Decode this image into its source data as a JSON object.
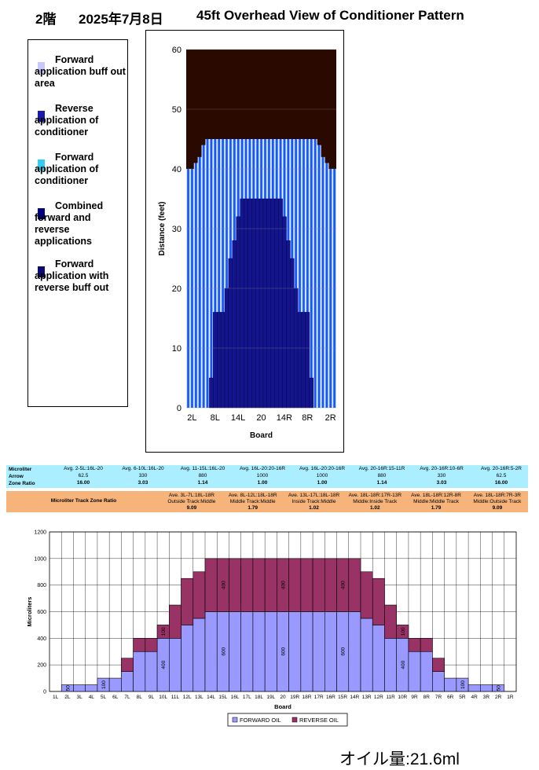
{
  "header": {
    "floor": "2階",
    "date": "2025年7月8日",
    "title": "45ft Overhead View of Conditioner Pattern"
  },
  "legend": [
    {
      "name": "Forward application buff out area",
      "color": "#c8c8ff"
    },
    {
      "name": "Reverse application of conditioner",
      "color": "#1a1aa8"
    },
    {
      "name": "Forward application of conditioner",
      "color": "#33ccee"
    },
    {
      "name": "Combined forward and reverse applications",
      "color": "#000080"
    },
    {
      "name": "Forward application with reverse buff out",
      "color": "#0a0a70"
    }
  ],
  "chart_data": [
    {
      "type": "overhead",
      "y_label": "Distance (feet)",
      "x_label": "Board",
      "categories": [
        null,
        "2L",
        null,
        null,
        null,
        null,
        null,
        "8L",
        null,
        null,
        null,
        null,
        null,
        "14L",
        null,
        null,
        null,
        null,
        null,
        "20",
        null,
        null,
        null,
        null,
        null,
        "14R",
        null,
        null,
        null,
        null,
        null,
        "8R",
        null,
        null,
        null,
        null,
        null,
        "2R",
        null
      ],
      "series": [
        {
          "color": "#2050ff",
          "values": [
            40,
            40,
            41,
            42,
            44,
            45,
            45,
            45,
            45,
            45,
            45,
            45,
            45,
            45,
            45,
            45,
            45,
            45,
            45,
            45,
            45,
            45,
            45,
            45,
            45,
            45,
            45,
            45,
            45,
            45,
            45,
            45,
            45,
            45,
            44,
            42,
            41,
            40,
            40
          ]
        },
        {
          "color": "#14148c",
          "values": [
            0,
            0,
            0,
            0,
            0,
            0,
            5,
            16,
            16,
            16,
            20,
            25,
            28,
            32,
            35,
            35,
            35,
            35,
            35,
            35,
            35,
            35,
            35,
            35,
            35,
            32,
            28,
            25,
            20,
            16,
            16,
            16,
            5,
            0,
            0,
            0,
            0,
            0,
            0
          ]
        }
      ],
      "ylim": [
        0,
        60
      ],
      "yticks": [
        0,
        10,
        20,
        30,
        40,
        50,
        60
      ],
      "grid": true
    },
    {
      "type": "bar",
      "stacked": true,
      "y_label": "Microliters",
      "x_label": "Board",
      "categories": [
        "1L",
        "2L",
        "3L",
        "4L",
        "5L",
        "6L",
        "7L",
        "8L",
        "9L",
        "10L",
        "11L",
        "12L",
        "13L",
        "14L",
        "15L",
        "16L",
        "17L",
        "18L",
        "19L",
        "20",
        "19R",
        "18R",
        "17R",
        "16R",
        "15R",
        "14R",
        "13R",
        "12R",
        "11R",
        "10R",
        "9R",
        "8R",
        "7R",
        "6R",
        "5R",
        "4R",
        "3R",
        "2R",
        "1R"
      ],
      "series": [
        {
          "name": "FORWARD OIL",
          "color": "#9999ff",
          "values": [
            0,
            50,
            50,
            50,
            100,
            100,
            150,
            300,
            300,
            400,
            400,
            500,
            550,
            600,
            600,
            600,
            600,
            600,
            600,
            600,
            600,
            600,
            600,
            600,
            600,
            600,
            550,
            500,
            400,
            400,
            300,
            300,
            150,
            100,
            100,
            50,
            50,
            50,
            0
          ],
          "value_labels": [
            null,
            "50",
            null,
            null,
            "100",
            null,
            null,
            null,
            null,
            "400",
            null,
            null,
            null,
            null,
            "600",
            null,
            null,
            null,
            null,
            "600",
            null,
            null,
            null,
            null,
            "600",
            null,
            null,
            null,
            null,
            "400",
            null,
            null,
            null,
            null,
            "100",
            null,
            null,
            "50",
            null
          ]
        },
        {
          "name": "REVERSE OIL",
          "color": "#993366",
          "values": [
            0,
            0,
            0,
            0,
            0,
            0,
            100,
            100,
            100,
            100,
            250,
            350,
            350,
            400,
            400,
            400,
            400,
            400,
            400,
            400,
            400,
            400,
            400,
            400,
            400,
            400,
            350,
            350,
            250,
            100,
            100,
            100,
            100,
            0,
            0,
            0,
            0,
            0,
            0
          ],
          "value_labels": [
            null,
            null,
            null,
            null,
            null,
            null,
            null,
            null,
            null,
            "100",
            null,
            null,
            null,
            null,
            "400",
            null,
            null,
            null,
            null,
            "400",
            null,
            null,
            null,
            null,
            "400",
            null,
            null,
            null,
            null,
            "100",
            null,
            null,
            null,
            null,
            null,
            null,
            null,
            null,
            null
          ]
        }
      ],
      "ylim": [
        0,
        1200
      ],
      "yticks": [
        0,
        200,
        400,
        600,
        800,
        1000,
        1200
      ],
      "grid": true
    }
  ],
  "table": {
    "row_labels": [
      "Microliter",
      "Arrow",
      "Zone Ratio"
    ],
    "arrow_columns": [
      [
        "Avg. 2-5L:16L-20",
        "62.5",
        "16.00"
      ],
      [
        "Avg. 6-10L:16L-20",
        "330",
        "3.03"
      ],
      [
        "Avg. 11-15L:16L-20",
        "880",
        "1.14"
      ],
      [
        "Avg. 16L-20:20-16R",
        "1000",
        "1.00"
      ],
      [
        "Avg. 16L-20:20-16R",
        "1000",
        "1.00"
      ],
      [
        "Avg. 20-16R:15-11R",
        "880",
        "1.14"
      ],
      [
        "Avg. 20-16R:10-6R",
        "330",
        "3.03"
      ],
      [
        "Avg. 20-16R:5-2R",
        "62.5",
        "16.00"
      ]
    ],
    "track_label": "Microliter Track Zone Ratio",
    "track_columns": [
      [
        "Ave. 3L-7L:18L-18R",
        "Outside Track:Middle",
        "9.09"
      ],
      [
        "Ave. 8L-12L:18L-18R",
        "Middle Track:Middle",
        "1.79"
      ],
      [
        "Ave. 13L-17L:18L-18R",
        "Inside Track:Middle",
        "1.02"
      ],
      [
        "Ave. 18L-18R:17R-13R",
        "Middle:Inside Track",
        "1.02"
      ],
      [
        "Ave. 18L-18R:12R-8R",
        "Middle:Middle Track",
        "1.79"
      ],
      [
        "Ave. 18L-18R:7R-3R",
        "Middle:Outside Track",
        "9.09"
      ]
    ]
  },
  "footer": "オイル量:21.6ml"
}
